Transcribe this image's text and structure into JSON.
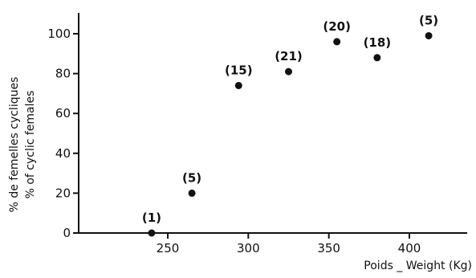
{
  "chart_data": {
    "type": "scatter",
    "xlabel": "Poids _ Weight (Kg)",
    "ylabel_line1": "% de femelles cycliques",
    "ylabel_line2": "% of cyclic females",
    "xlim": [
      235,
      433
    ],
    "ylim": [
      0,
      110
    ],
    "xticks": [
      250,
      300,
      350,
      400
    ],
    "yticks": [
      0,
      20,
      40,
      60,
      80,
      100
    ],
    "xtick_labels": [
      "250",
      "300",
      "350",
      "400"
    ],
    "ytick_labels": [
      "0",
      "20",
      "40",
      "60",
      "80",
      "100"
    ],
    "grid": false,
    "points": [
      {
        "x": 240,
        "y": 0,
        "label": "(1)"
      },
      {
        "x": 265,
        "y": 20,
        "label": "(5)"
      },
      {
        "x": 294,
        "y": 74,
        "label": "(15)"
      },
      {
        "x": 325,
        "y": 81,
        "label": "(21)"
      },
      {
        "x": 355,
        "y": 96,
        "label": "(20)"
      },
      {
        "x": 380,
        "y": 88,
        "label": "(18)"
      },
      {
        "x": 412,
        "y": 99,
        "label": "(5)"
      }
    ],
    "marker_color": "#111111"
  }
}
